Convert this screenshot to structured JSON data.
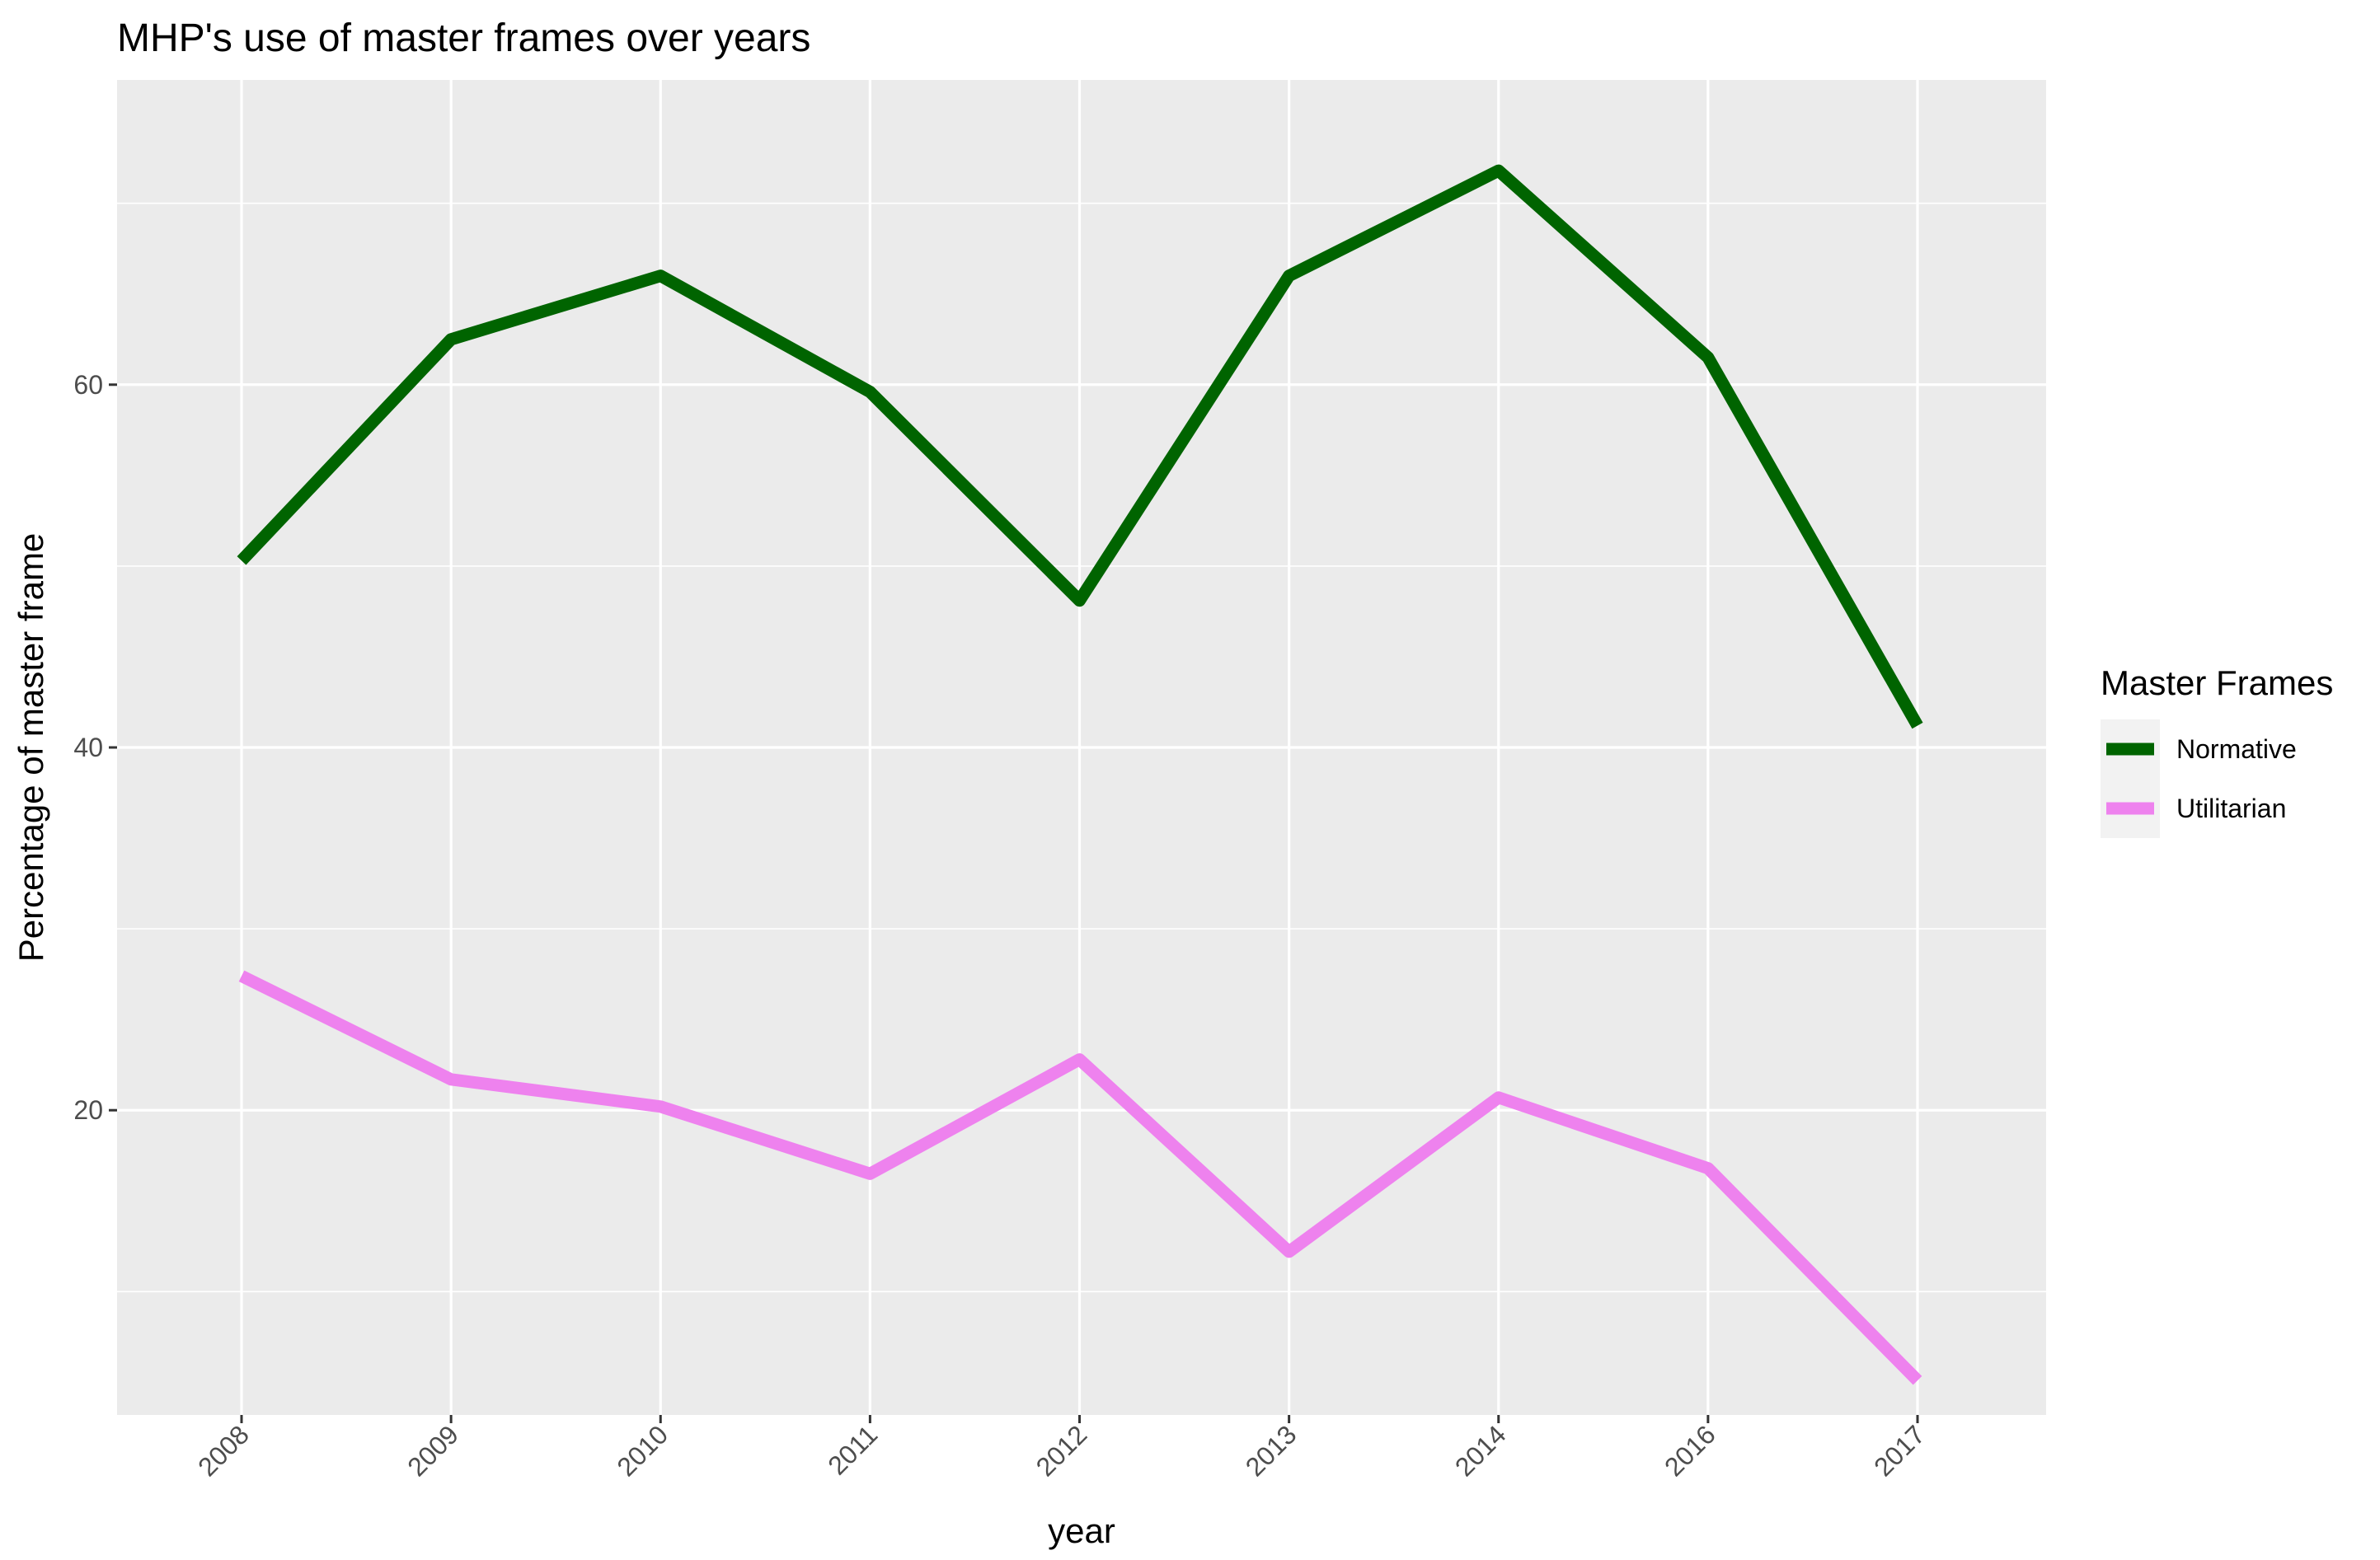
{
  "chart_data": {
    "type": "line",
    "title": "MHP's use of master frames over years",
    "xlabel": "year",
    "ylabel": "Percentage of master frame",
    "categories": [
      "2008",
      "2009",
      "2010",
      "2011",
      "2012",
      "2013",
      "2014",
      "2016",
      "2017"
    ],
    "ylim": [
      3.2,
      76.8
    ],
    "yticks": [
      20,
      40,
      60
    ],
    "series": [
      {
        "name": "Normative",
        "color": "#006400",
        "values": [
          50.3,
          62.5,
          66.0,
          59.6,
          48.1,
          66.0,
          71.8,
          61.5,
          41.2
        ]
      },
      {
        "name": "Utilitarian",
        "color": "#EE82EE",
        "values": [
          27.4,
          21.7,
          20.2,
          16.5,
          22.8,
          12.2,
          20.7,
          16.8,
          5.1
        ]
      }
    ],
    "grid": true,
    "legend": {
      "title": "Master Frames",
      "position": "right"
    },
    "panel_color": "#EBEBEB",
    "grid_color": "#FFFFFF"
  }
}
